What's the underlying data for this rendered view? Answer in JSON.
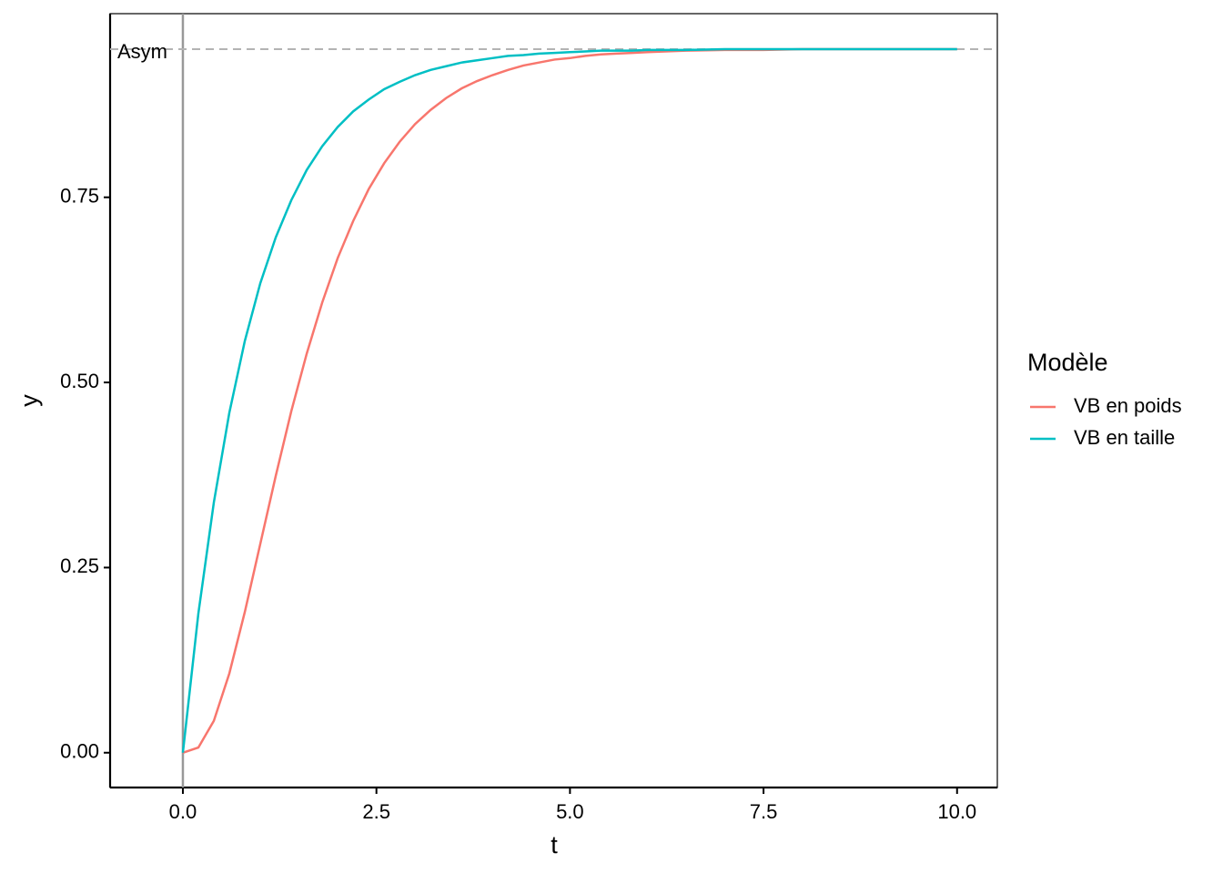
{
  "chart_data": {
    "type": "line",
    "x_label": "t",
    "y_label": "y",
    "x": [
      0,
      0.2,
      0.4,
      0.6,
      0.8,
      1.0,
      1.2,
      1.4,
      1.6,
      1.8,
      2.0,
      2.2,
      2.4,
      2.6,
      2.8,
      3.0,
      3.2,
      3.4,
      3.6,
      3.8,
      4.0,
      4.2,
      4.4,
      4.6,
      4.8,
      5.0,
      5.2,
      5.4,
      5.6,
      5.8,
      6.0,
      6.5,
      7.0,
      7.5,
      8.0,
      8.5,
      9.0,
      9.5,
      10.0
    ],
    "series": [
      {
        "name": "VB en poids",
        "color": "#f8766d",
        "values": [
          0,
          0.007,
          0.043,
          0.107,
          0.19,
          0.282,
          0.374,
          0.461,
          0.539,
          0.608,
          0.668,
          0.718,
          0.761,
          0.796,
          0.825,
          0.849,
          0.868,
          0.884,
          0.897,
          0.907,
          0.915,
          0.922,
          0.928,
          0.932,
          0.936,
          0.938,
          0.941,
          0.943,
          0.944,
          0.945,
          0.946,
          0.948,
          0.949,
          0.949,
          0.95,
          0.95,
          0.95,
          0.95,
          0.95
        ]
      },
      {
        "name": "VB en taille",
        "color": "#00bfc4",
        "values": [
          0,
          0.188,
          0.338,
          0.459,
          0.556,
          0.634,
          0.696,
          0.746,
          0.787,
          0.819,
          0.845,
          0.866,
          0.882,
          0.896,
          0.906,
          0.915,
          0.922,
          0.927,
          0.932,
          0.935,
          0.938,
          0.941,
          0.942,
          0.944,
          0.945,
          0.946,
          0.947,
          0.948,
          0.948,
          0.948,
          0.949,
          0.949,
          0.95,
          0.95,
          0.95,
          0.95,
          0.95,
          0.95,
          0.95
        ]
      }
    ],
    "legend_title": "Modèle",
    "legend_position": "right",
    "hline": {
      "value": 0.95,
      "label": "Asym"
    },
    "vline": 0,
    "xlim": [
      -0.94,
      10.52
    ],
    "ylim": [
      -0.047,
      0.998
    ],
    "xticks": [
      {
        "value": 0,
        "label": "0.0"
      },
      2.5,
      {
        "value": 5,
        "label": "5.0"
      },
      7.5,
      {
        "value": 10,
        "label": "10.0"
      }
    ],
    "yticks": [
      {
        "value": 0,
        "label": "0.00"
      },
      0.25,
      {
        "value": 0.5,
        "label": "0.50"
      },
      0.75
    ],
    "grid": false
  }
}
